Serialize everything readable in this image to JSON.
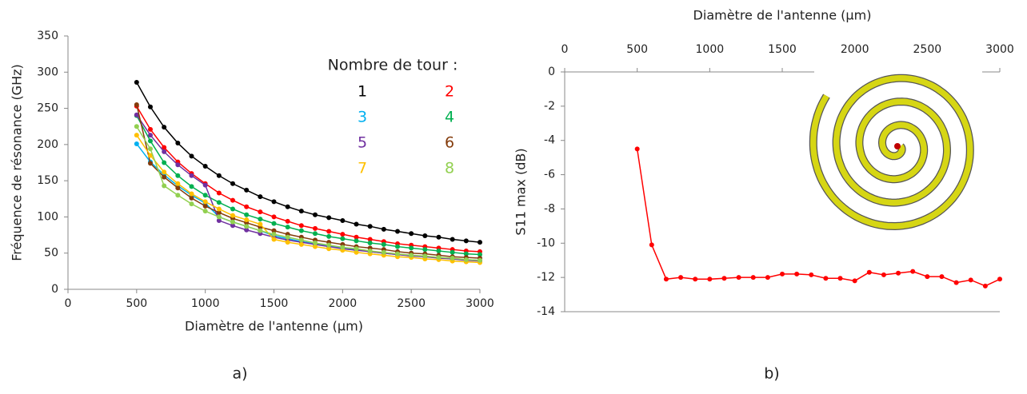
{
  "chart_data": [
    {
      "type": "line",
      "x_label": "Diamètre de l'antenne (µm)",
      "y_label": "Fréquence de résonance (GHz)",
      "legend_title": "Nombre de tour :",
      "caption": "a)",
      "xlim": [
        0,
        3000
      ],
      "xticks": [
        0,
        500,
        1000,
        1500,
        2000,
        2500,
        3000
      ],
      "ylim": [
        0,
        350
      ],
      "yticks": [
        0,
        50,
        100,
        150,
        200,
        250,
        300,
        350
      ],
      "x": [
        500,
        600,
        700,
        800,
        900,
        1000,
        1100,
        1200,
        1300,
        1400,
        1500,
        1600,
        1700,
        1800,
        1900,
        2000,
        2100,
        2200,
        2300,
        2400,
        2500,
        2600,
        2700,
        2800,
        2900,
        3000
      ],
      "series": [
        {
          "name": "1",
          "color": "#000000",
          "values": [
            286,
            252,
            224,
            202,
            184,
            170,
            157,
            146,
            137,
            128,
            121,
            114,
            108,
            103,
            99,
            95,
            90,
            87,
            83,
            80,
            77,
            74,
            72,
            69,
            67,
            65
          ]
        },
        {
          "name": "2",
          "color": "#ff0000",
          "values": [
            253,
            221,
            196,
            176,
            160,
            146,
            133,
            123,
            114,
            107,
            100,
            94,
            88,
            84,
            80,
            76,
            72,
            69,
            66,
            63,
            61,
            59,
            57,
            55,
            53,
            52
          ]
        },
        {
          "name": "3",
          "color": "#00b0f0",
          "values": [
            201,
            176,
            158,
            143,
            130,
            119,
            100,
            93,
            87,
            81,
            74,
            70,
            66,
            63,
            60,
            57,
            55,
            52,
            50,
            48,
            47,
            45,
            44,
            42,
            41,
            40
          ]
        },
        {
          "name": "4",
          "color": "#00b050",
          "values": [
            240,
            205,
            175,
            157,
            142,
            130,
            120,
            111,
            103,
            97,
            91,
            86,
            81,
            77,
            73,
            70,
            67,
            64,
            62,
            59,
            57,
            55,
            53,
            51,
            49,
            48
          ]
        },
        {
          "name": "5",
          "color": "#7030a0",
          "values": [
            241,
            213,
            190,
            172,
            157,
            144,
            95,
            88,
            82,
            77,
            72,
            68,
            65,
            62,
            59,
            56,
            54,
            52,
            50,
            48,
            46,
            45,
            43,
            42,
            40,
            39
          ]
        },
        {
          "name": "6",
          "color": "#843c0c",
          "values": [
            255,
            174,
            155,
            140,
            126,
            115,
            106,
            98,
            92,
            86,
            81,
            76,
            72,
            68,
            65,
            62,
            59,
            57,
            55,
            52,
            50,
            49,
            47,
            45,
            44,
            43
          ]
        },
        {
          "name": "7",
          "color": "#ffc000",
          "values": [
            213,
            185,
            162,
            146,
            132,
            121,
            111,
            102,
            96,
            90,
            69,
            65,
            62,
            59,
            56,
            54,
            51,
            49,
            47,
            45,
            44,
            42,
            41,
            39,
            38,
            37
          ]
        },
        {
          "name": "8",
          "color": "#92d050",
          "values": [
            225,
            194,
            143,
            130,
            118,
            108,
            100,
            93,
            87,
            81,
            76,
            72,
            68,
            64,
            61,
            58,
            56,
            53,
            51,
            49,
            47,
            46,
            44,
            43,
            41,
            40
          ]
        }
      ]
    },
    {
      "type": "line",
      "x_label": "Diamètre de l'antenne (µm)",
      "y_label": "S11 max (dB)",
      "caption": "b)",
      "xlim": [
        0,
        3000
      ],
      "xticks": [
        0,
        500,
        1000,
        1500,
        2000,
        2500,
        3000
      ],
      "ylim": [
        -14,
        0
      ],
      "yticks": [
        0,
        -2,
        -4,
        -6,
        -8,
        -10,
        -12,
        -14
      ],
      "x": [
        500,
        600,
        700,
        800,
        900,
        1000,
        1100,
        1200,
        1300,
        1400,
        1500,
        1600,
        1700,
        1800,
        1900,
        2000,
        2100,
        2200,
        2300,
        2400,
        2500,
        2600,
        2700,
        2800,
        2900,
        3000
      ],
      "series": [
        {
          "color": "#ff0000",
          "values": [
            -4.5,
            -10.1,
            -12.1,
            -12.0,
            -12.1,
            -12.1,
            -12.05,
            -12.0,
            -12.0,
            -12.0,
            -11.8,
            -11.8,
            -11.85,
            -12.05,
            -12.05,
            -12.2,
            -11.7,
            -11.85,
            -11.75,
            -11.65,
            -11.95,
            -11.95,
            -12.3,
            -12.15,
            -12.5,
            -12.1
          ]
        }
      ]
    }
  ]
}
